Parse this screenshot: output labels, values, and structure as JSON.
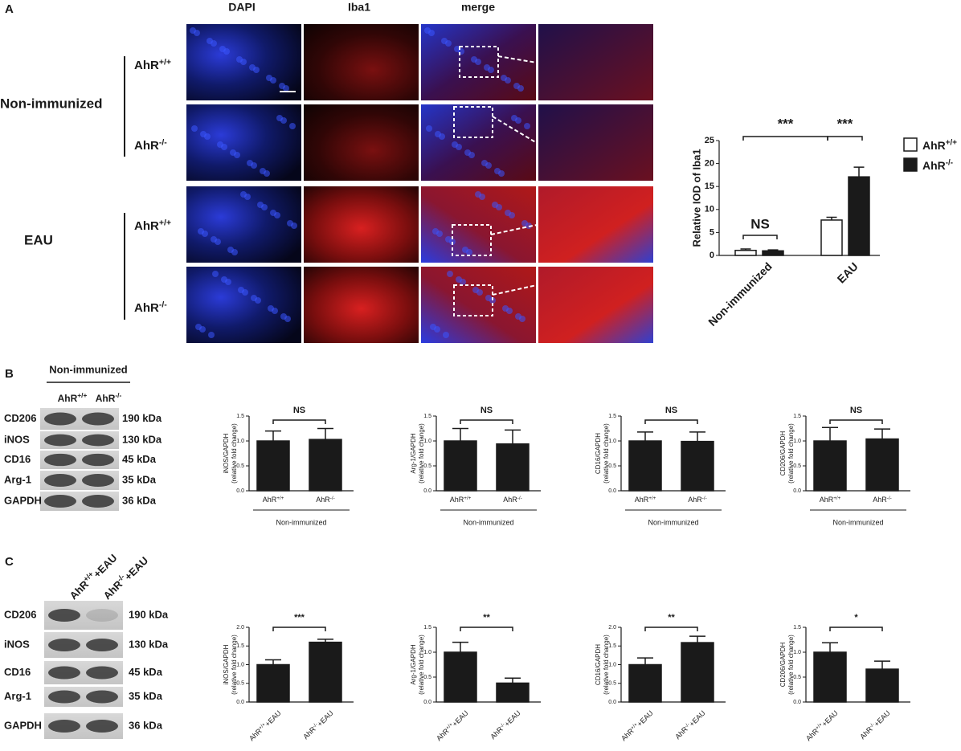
{
  "figure": {
    "panels": [
      "A",
      "B",
      "C"
    ],
    "columns": [
      "DAPI",
      "Iba1",
      "merge"
    ],
    "groups": [
      {
        "label": "Non-immunized",
        "rows": [
          "AhR+/+",
          "AhR-/-"
        ]
      },
      {
        "label": "EAU",
        "rows": [
          "AhR+/+",
          "AhR-/-"
        ]
      }
    ],
    "blot_b": {
      "header": "Non-immunized",
      "lanes": [
        "AhR+/+",
        "AhR-/-"
      ],
      "proteins": [
        {
          "name": "CD206",
          "size": "190 kDa"
        },
        {
          "name": "iNOS",
          "size": "130 kDa"
        },
        {
          "name": "CD16",
          "size": "45 kDa"
        },
        {
          "name": "Arg-1",
          "size": "35 kDa"
        },
        {
          "name": "GAPDH",
          "size": "36 kDa"
        }
      ]
    },
    "blot_c": {
      "lanes": [
        "AhR+/++EAU",
        "AhR-/-+EAU"
      ],
      "proteins": [
        {
          "name": "CD206",
          "size": "190 kDa"
        },
        {
          "name": "iNOS",
          "size": "130 kDa"
        },
        {
          "name": "CD16",
          "size": "45 kDa"
        },
        {
          "name": "Arg-1",
          "size": "35 kDa"
        },
        {
          "name": "GAPDH",
          "size": "36 kDa"
        }
      ]
    }
  },
  "chart_data": [
    {
      "type": "bar",
      "ylabel": "Relative IOD of Iba1",
      "categories": [
        "Non-immunized",
        "EAU"
      ],
      "series": [
        {
          "name": "AhR+/+",
          "color": "#ffffff",
          "values": [
            1.1,
            7.7
          ],
          "errors": [
            0.3,
            0.6
          ]
        },
        {
          "name": "AhR-/-",
          "color": "#1a1a1a",
          "values": [
            1.0,
            17.1
          ],
          "errors": [
            0.2,
            2.1
          ]
        }
      ],
      "ylim": [
        0,
        25
      ],
      "yticks": [
        0,
        5,
        10,
        15,
        20,
        25
      ],
      "annotations": [
        "NS",
        "***",
        "***"
      ]
    },
    {
      "type": "bar",
      "ylabel": [
        "iNOS/GAPDH",
        "(relative fold change)"
      ],
      "categories": [
        "AhR+/+",
        "AhR-/-"
      ],
      "values": [
        1.0,
        1.03
      ],
      "errors": [
        0.2,
        0.22
      ],
      "color": "#1a1a1a",
      "ylim": [
        0,
        1.5
      ],
      "yticks": [
        {
          "value": 0,
          "label": "0.0"
        },
        0.5,
        {
          "value": 1,
          "label": "1.0"
        },
        1.5
      ],
      "xlabel": "Non-immunized",
      "annotation": "NS"
    },
    {
      "type": "bar",
      "ylabel": [
        "Arg-1/GAPDH",
        "(relative fold change)"
      ],
      "categories": [
        "AhR+/+",
        "AhR-/-"
      ],
      "values": [
        1.0,
        0.94
      ],
      "errors": [
        0.25,
        0.28
      ],
      "color": "#1a1a1a",
      "ylim": [
        0,
        1.5
      ],
      "yticks": [
        {
          "value": 0,
          "label": "0.0"
        },
        0.5,
        {
          "value": 1,
          "label": "1.0"
        },
        1.5
      ],
      "xlabel": "Non-immunized",
      "annotation": "NS"
    },
    {
      "type": "bar",
      "ylabel": [
        "CD16/GAPDH",
        "(relative fold change)"
      ],
      "categories": [
        "AhR+/+",
        "AhR-/-"
      ],
      "values": [
        1.0,
        0.99
      ],
      "errors": [
        0.18,
        0.19
      ],
      "color": "#1a1a1a",
      "ylim": [
        0,
        1.5
      ],
      "yticks": [
        {
          "value": 0,
          "label": "0.0"
        },
        0.5,
        {
          "value": 1,
          "label": "1.0"
        },
        1.5
      ],
      "xlabel": "Non-immunized",
      "annotation": "NS"
    },
    {
      "type": "bar",
      "ylabel": [
        "CD206/GAPDH",
        "(relative fold change)"
      ],
      "categories": [
        "AhR+/+",
        "AhR-/-"
      ],
      "values": [
        1.0,
        1.04
      ],
      "errors": [
        0.27,
        0.2
      ],
      "color": "#1a1a1a",
      "ylim": [
        0,
        1.5
      ],
      "yticks": [
        {
          "value": 0,
          "label": "0.0"
        },
        0.5,
        {
          "value": 1,
          "label": "1.0"
        },
        1.5
      ],
      "xlabel": "Non-immunized",
      "annotation": "NS"
    },
    {
      "type": "bar",
      "ylabel": [
        "iNOS/GAPDH",
        "(relative fold change)"
      ],
      "categories": [
        "AhR+/++EAU",
        "AhR-/-+EAU"
      ],
      "values": [
        1.0,
        1.6
      ],
      "errors": [
        0.13,
        0.08
      ],
      "color": "#1a1a1a",
      "ylim": [
        0,
        2
      ],
      "yticks": [
        {
          "value": 0,
          "label": "0.0"
        },
        0.5,
        {
          "value": 1,
          "label": "1.0"
        },
        1.5,
        {
          "value": 2,
          "label": "2.0"
        }
      ],
      "annotation": "***"
    },
    {
      "type": "bar",
      "ylabel": [
        "Arg-1/GAPDH",
        "(relative fold change)"
      ],
      "categories": [
        "AhR+/++EAU",
        "AhR-/-+EAU"
      ],
      "values": [
        1.0,
        0.38
      ],
      "errors": [
        0.2,
        0.1
      ],
      "color": "#1a1a1a",
      "ylim": [
        0,
        1.5
      ],
      "yticks": [
        {
          "value": 0,
          "label": "0.0"
        },
        0.5,
        {
          "value": 1,
          "label": "1.0"
        },
        1.5
      ],
      "annotation": "**"
    },
    {
      "type": "bar",
      "ylabel": [
        "CD16/GAPDH",
        "(relative fold change)"
      ],
      "categories": [
        "AhR+/++EAU",
        "AhR-/-+EAU"
      ],
      "values": [
        1.0,
        1.59
      ],
      "errors": [
        0.18,
        0.17
      ],
      "color": "#1a1a1a",
      "ylim": [
        0,
        2
      ],
      "yticks": [
        {
          "value": 0,
          "label": "0.0"
        },
        0.5,
        {
          "value": 1,
          "label": "1.0"
        },
        1.5,
        {
          "value": 2,
          "label": "2.0"
        }
      ],
      "annotation": "**"
    },
    {
      "type": "bar",
      "ylabel": [
        "CD206/GAPDH",
        "(relative fold change)"
      ],
      "categories": [
        "AhR+/++EAU",
        "AhR-/-+EAU"
      ],
      "values": [
        1.0,
        0.66
      ],
      "errors": [
        0.19,
        0.16
      ],
      "color": "#1a1a1a",
      "ylim": [
        0,
        1.5
      ],
      "yticks": [
        {
          "value": 0,
          "label": "0.0"
        },
        0.5,
        {
          "value": 1,
          "label": "1.0"
        },
        1.5
      ],
      "annotation": "*"
    }
  ]
}
